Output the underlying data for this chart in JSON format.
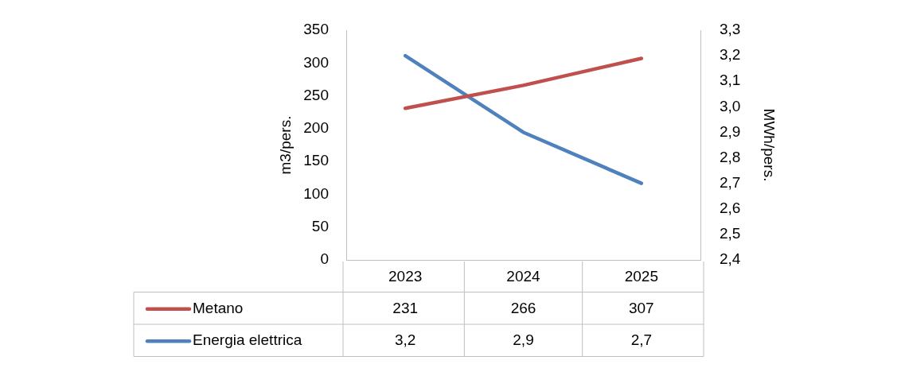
{
  "chart_data": {
    "type": "line",
    "ylabel": "m3/pers.",
    "y2label": "MWh/pers.",
    "categories": [
      "2023",
      "2024",
      "2025"
    ],
    "series": [
      {
        "name": "Metano",
        "color": "#c0504d",
        "values": [
          231,
          266,
          307
        ],
        "value_labels": [
          "231",
          "266",
          "307"
        ]
      },
      {
        "name": "Energia elettrica",
        "color": "#4f81bd",
        "values": [
          3.2,
          2.9,
          2.7
        ],
        "axis": "y2",
        "value_labels": [
          "3,2",
          "2,9",
          "2,7"
        ]
      }
    ],
    "ylim": [
      0,
      350
    ],
    "yticks": [
      0,
      50,
      100,
      150,
      200,
      250,
      300,
      350
    ],
    "y2lim": [
      2.4,
      3.3
    ],
    "y2ticks": [
      {
        "value": 2.4,
        "label": "2,4"
      },
      {
        "value": 2.5,
        "label": "2,5"
      },
      {
        "value": 2.6,
        "label": "2,6"
      },
      {
        "value": 2.7,
        "label": "2,7"
      },
      {
        "value": 2.8,
        "label": "2,8"
      },
      {
        "value": 2.9,
        "label": "2,9"
      },
      {
        "value": 3.0,
        "label": "3,0"
      },
      {
        "value": 3.1,
        "label": "3,1"
      },
      {
        "value": 3.2,
        "label": "3,2"
      },
      {
        "value": 3.3,
        "label": "3,3"
      }
    ],
    "legend": "bottom",
    "grid": false,
    "marker": "none",
    "line_style": "solid"
  }
}
